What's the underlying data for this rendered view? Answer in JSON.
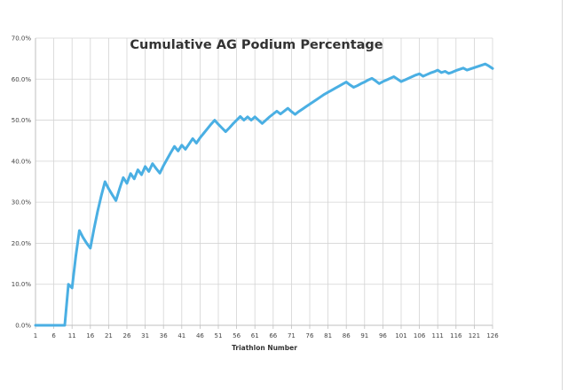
{
  "chart_data": {
    "type": "line",
    "title": "Cumulative AG Podium Percentage",
    "xlabel": "Triathlon Number",
    "ylabel": "",
    "xlim": [
      1,
      126
    ],
    "ylim": [
      0,
      70
    ],
    "x_ticks": [
      1,
      6,
      11,
      16,
      21,
      26,
      31,
      36,
      41,
      46,
      51,
      56,
      61,
      66,
      71,
      76,
      81,
      86,
      91,
      96,
      101,
      106,
      111,
      116,
      121,
      126
    ],
    "y_ticks": [
      "0.0%",
      "10.0%",
      "20.0%",
      "30.0%",
      "40.0%",
      "50.0%",
      "60.0%",
      "70.0%"
    ],
    "y_tick_values": [
      0,
      10,
      20,
      30,
      40,
      50,
      60,
      70
    ],
    "grid": true,
    "legend": "none",
    "colors": {
      "line": "#4aafe3",
      "grid": "#d4d4d4",
      "axis": "#bfbfbf",
      "text": "#444444"
    },
    "series": [
      {
        "name": "",
        "x": [
          1,
          2,
          3,
          4,
          5,
          6,
          7,
          8,
          9,
          10,
          11,
          12,
          13,
          14,
          15,
          16,
          17,
          18,
          19,
          20,
          21,
          22,
          23,
          24,
          25,
          26,
          27,
          28,
          29,
          30,
          31,
          32,
          33,
          34,
          35,
          36,
          37,
          38,
          39,
          40,
          41,
          42,
          43,
          44,
          45,
          46,
          47,
          48,
          49,
          50,
          51,
          52,
          53,
          54,
          55,
          56,
          57,
          58,
          59,
          60,
          61,
          62,
          63,
          64,
          65,
          66,
          67,
          68,
          69,
          70,
          71,
          72,
          73,
          74,
          75,
          76,
          77,
          78,
          79,
          80,
          81,
          82,
          83,
          84,
          85,
          86,
          87,
          88,
          89,
          90,
          91,
          92,
          93,
          94,
          95,
          96,
          97,
          98,
          99,
          100,
          101,
          102,
          103,
          104,
          105,
          106,
          107,
          108,
          109,
          110,
          111,
          112,
          113,
          114,
          115,
          116,
          117,
          118,
          119,
          120,
          121,
          122,
          123,
          124,
          125,
          126
        ],
        "values": [
          0,
          0,
          0,
          0,
          0,
          0,
          0,
          0,
          0,
          10.0,
          9.1,
          16.7,
          23.1,
          21.4,
          20.0,
          18.8,
          23.5,
          27.8,
          31.6,
          35.0,
          33.3,
          31.8,
          30.4,
          33.3,
          36.0,
          34.6,
          37.0,
          35.7,
          37.9,
          36.7,
          38.7,
          37.5,
          39.4,
          38.2,
          37.1,
          38.9,
          40.5,
          42.1,
          43.6,
          42.5,
          43.9,
          42.9,
          44.2,
          45.5,
          44.4,
          45.7,
          46.8,
          47.9,
          49.0,
          50.0,
          49.0,
          48.1,
          47.2,
          48.1,
          49.1,
          50.0,
          50.9,
          50.0,
          50.8,
          50.0,
          50.8,
          50.0,
          49.2,
          50.0,
          50.8,
          51.5,
          52.2,
          51.5,
          52.2,
          52.9,
          52.1,
          51.4,
          52.1,
          52.7,
          53.3,
          53.9,
          54.5,
          55.1,
          55.7,
          56.3,
          56.8,
          57.3,
          57.8,
          58.3,
          58.8,
          59.3,
          58.6,
          58.0,
          58.4,
          58.9,
          59.3,
          59.8,
          60.2,
          59.6,
          58.9,
          59.4,
          59.8,
          60.2,
          60.6,
          60.0,
          59.4,
          59.8,
          60.2,
          60.6,
          61.0,
          61.3,
          60.7,
          61.1,
          61.5,
          61.8,
          62.2,
          61.6,
          61.9,
          61.4,
          61.7,
          62.1,
          62.4,
          62.7,
          62.2,
          62.5,
          62.8,
          63.1,
          63.4,
          63.7,
          63.2,
          62.6
        ]
      }
    ]
  }
}
